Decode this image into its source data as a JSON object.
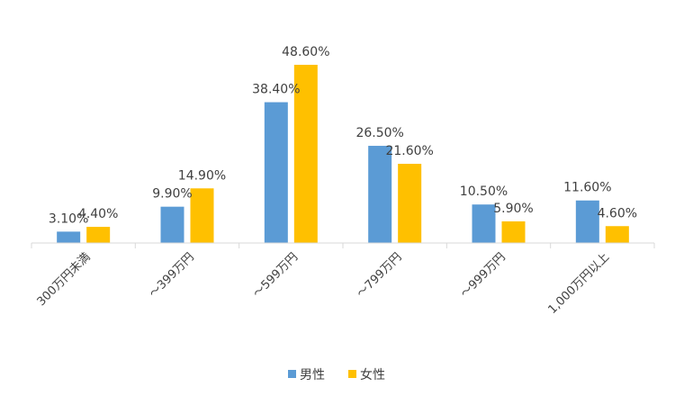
{
  "chart_data": {
    "type": "bar",
    "categories": [
      "300万円未満",
      "～399万円",
      "～599万円",
      "～799万円",
      "～999万円",
      "1,000万円以上"
    ],
    "series": [
      {
        "name": "男性",
        "color": "#5B9BD5",
        "values": [
          3.1,
          9.9,
          38.4,
          26.5,
          10.5,
          11.6
        ],
        "labels": [
          "3.10%",
          "9.90%",
          "38.40%",
          "26.50%",
          "10.50%",
          "11.60%"
        ]
      },
      {
        "name": "女性",
        "color": "#FFC000",
        "values": [
          4.4,
          14.9,
          48.6,
          21.6,
          5.9,
          4.6
        ],
        "labels": [
          "4.40%",
          "14.90%",
          "48.60%",
          "21.60%",
          "5.90%",
          "4.60%"
        ]
      }
    ],
    "ylim": [
      0,
      50
    ],
    "legend_position": "bottom",
    "grid": false
  }
}
